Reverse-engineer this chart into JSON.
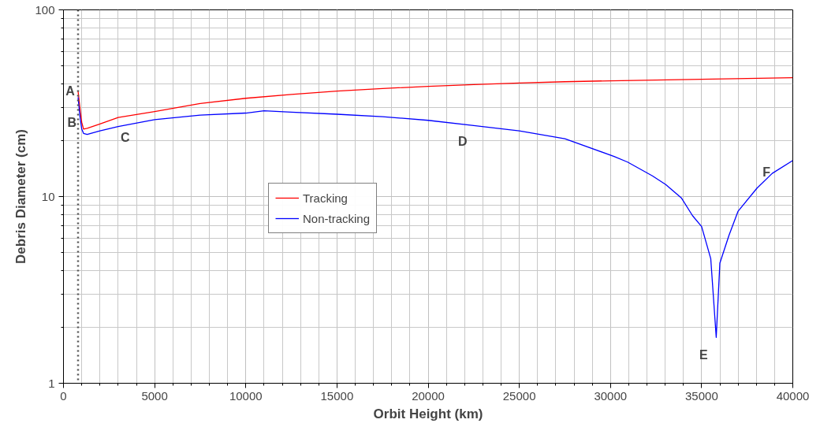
{
  "chart_data": {
    "type": "line",
    "xlabel": "Orbit Height (km)",
    "ylabel": "Debris Diameter (cm)",
    "log": "y",
    "grid": true,
    "legend": "center",
    "line_style": "solid",
    "marker": "none",
    "xlim": [
      0,
      40000
    ],
    "xticks": [
      0,
      5000,
      10000,
      15000,
      20000,
      25000,
      30000,
      35000,
      40000
    ],
    "ylim": [
      1,
      100
    ],
    "yticks": [
      1,
      10,
      100
    ],
    "series": [
      {
        "name": "Tracking",
        "color": "#ff0000",
        "x": [
          800,
          900,
          1000,
          1100,
          1300,
          2000,
          3000,
          4000,
          5000,
          7500,
          10000,
          12500,
          15000,
          17500,
          20000,
          22500,
          25000,
          27500,
          30000,
          32500,
          35000,
          37500,
          40000
        ],
        "values": [
          36.7,
          30,
          25,
          23,
          23.2,
          24.5,
          26.5,
          27.5,
          28.5,
          31.5,
          33.6,
          35.2,
          36.7,
          37.9,
          38.9,
          39.8,
          40.6,
          41.2,
          41.7,
          42.1,
          42.5,
          42.9,
          43.3
        ]
      },
      {
        "name": "Non-tracking",
        "color": "#0000ff",
        "x": [
          800,
          900,
          1000,
          1100,
          1300,
          2000,
          3000,
          5000,
          7500,
          10000,
          11000,
          12500,
          15000,
          17500,
          20000,
          22500,
          25000,
          27500,
          30200,
          30940,
          32300,
          33030,
          33900,
          34500,
          35000,
          35500,
          35800,
          36000,
          36500,
          37000,
          38040,
          38870,
          40000
        ],
        "values": [
          34,
          27,
          23,
          21.8,
          21.5,
          22.5,
          23.7,
          25.8,
          27.3,
          28,
          28.8,
          28.3,
          27.6,
          26.8,
          25.6,
          24,
          22.5,
          20.4,
          16.4,
          15.3,
          12.9,
          11.6,
          9.8,
          7.9,
          6.9,
          4.65,
          1.76,
          4.4,
          6.2,
          8.35,
          11.1,
          13.3,
          15.6
        ]
      }
    ],
    "ref_lines": [
      {
        "axis": "x",
        "value": 800,
        "label": null,
        "color": "#555555",
        "line_style": "dotted"
      }
    ],
    "annotations": [
      {
        "text": "A",
        "x": 800,
        "y": 36.7
      },
      {
        "text": "B",
        "x": 900,
        "y": 27
      },
      {
        "text": "C",
        "x": 3000,
        "y": 23.7
      },
      {
        "text": "D",
        "x": 22500,
        "y": 24
      },
      {
        "text": "E",
        "x": 35800,
        "y": 1.76
      },
      {
        "text": "F",
        "x": 38040,
        "y": 11.1
      }
    ]
  }
}
